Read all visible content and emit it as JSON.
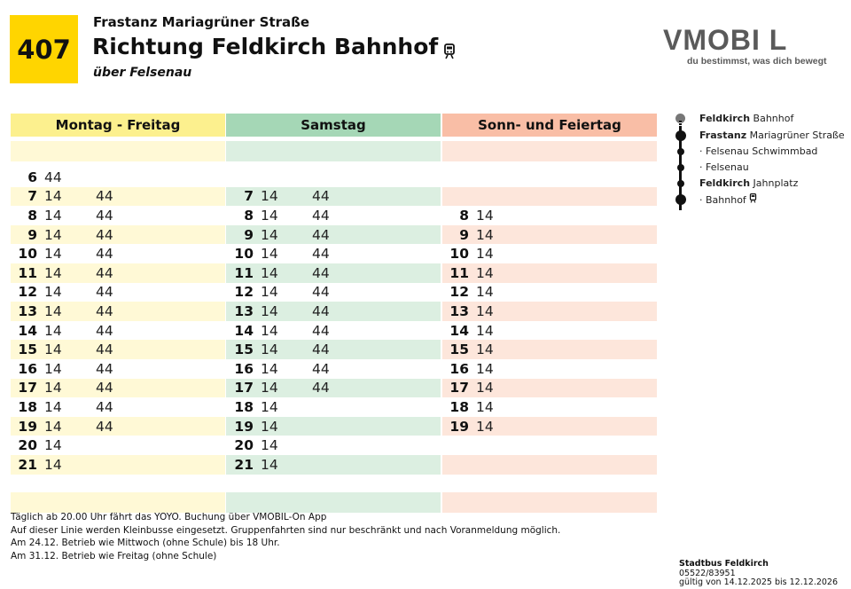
{
  "header": {
    "line_number": "407",
    "from_stop": "Frastanz Mariagrüner Straße",
    "direction": "Richtung Feldkirch Bahnhof",
    "direction_icon": "train-icon",
    "via": "über Felsenau"
  },
  "logo": {
    "wordmark": "VMOBI L",
    "tagline": "du bestimmst, was dich bewegt"
  },
  "columns": [
    {
      "label": "Montag - Freitag",
      "color": "#FCF08E",
      "rows": [
        {
          "hour": "6",
          "minutes": [
            "44",
            ""
          ]
        },
        {
          "hour": "7",
          "minutes": [
            "14",
            "44"
          ]
        },
        {
          "hour": "8",
          "minutes": [
            "14",
            "44"
          ]
        },
        {
          "hour": "9",
          "minutes": [
            "14",
            "44"
          ]
        },
        {
          "hour": "10",
          "minutes": [
            "14",
            "44"
          ]
        },
        {
          "hour": "11",
          "minutes": [
            "14",
            "44"
          ]
        },
        {
          "hour": "12",
          "minutes": [
            "14",
            "44"
          ]
        },
        {
          "hour": "13",
          "minutes": [
            "14",
            "44"
          ]
        },
        {
          "hour": "14",
          "minutes": [
            "14",
            "44"
          ]
        },
        {
          "hour": "15",
          "minutes": [
            "14",
            "44"
          ]
        },
        {
          "hour": "16",
          "minutes": [
            "14",
            "44"
          ]
        },
        {
          "hour": "17",
          "minutes": [
            "14",
            "44"
          ]
        },
        {
          "hour": "18",
          "minutes": [
            "14",
            "44"
          ]
        },
        {
          "hour": "19",
          "minutes": [
            "14",
            "44"
          ]
        },
        {
          "hour": "20",
          "minutes": [
            "14",
            ""
          ]
        },
        {
          "hour": "21",
          "minutes": [
            "14",
            ""
          ]
        }
      ]
    },
    {
      "label": "Samstag",
      "color": "#A5D7B6",
      "rows": [
        {
          "hour": "",
          "minutes": [
            "",
            ""
          ]
        },
        {
          "hour": "7",
          "minutes": [
            "14",
            "44"
          ]
        },
        {
          "hour": "8",
          "minutes": [
            "14",
            "44"
          ]
        },
        {
          "hour": "9",
          "minutes": [
            "14",
            "44"
          ]
        },
        {
          "hour": "10",
          "minutes": [
            "14",
            "44"
          ]
        },
        {
          "hour": "11",
          "minutes": [
            "14",
            "44"
          ]
        },
        {
          "hour": "12",
          "minutes": [
            "14",
            "44"
          ]
        },
        {
          "hour": "13",
          "minutes": [
            "14",
            "44"
          ]
        },
        {
          "hour": "14",
          "minutes": [
            "14",
            "44"
          ]
        },
        {
          "hour": "15",
          "minutes": [
            "14",
            "44"
          ]
        },
        {
          "hour": "16",
          "minutes": [
            "14",
            "44"
          ]
        },
        {
          "hour": "17",
          "minutes": [
            "14",
            "44"
          ]
        },
        {
          "hour": "18",
          "minutes": [
            "14",
            ""
          ]
        },
        {
          "hour": "19",
          "minutes": [
            "14",
            ""
          ]
        },
        {
          "hour": "20",
          "minutes": [
            "14",
            ""
          ]
        },
        {
          "hour": "21",
          "minutes": [
            "14",
            ""
          ]
        }
      ]
    },
    {
      "label": "Sonn- und Feiertag",
      "color": "#F9BEA6",
      "rows": [
        {
          "hour": "",
          "minutes": [
            "",
            ""
          ]
        },
        {
          "hour": "",
          "minutes": [
            "",
            ""
          ]
        },
        {
          "hour": "8",
          "minutes": [
            "14",
            ""
          ]
        },
        {
          "hour": "9",
          "minutes": [
            "14",
            ""
          ]
        },
        {
          "hour": "10",
          "minutes": [
            "14",
            ""
          ]
        },
        {
          "hour": "11",
          "minutes": [
            "14",
            ""
          ]
        },
        {
          "hour": "12",
          "minutes": [
            "14",
            ""
          ]
        },
        {
          "hour": "13",
          "minutes": [
            "14",
            ""
          ]
        },
        {
          "hour": "14",
          "minutes": [
            "14",
            ""
          ]
        },
        {
          "hour": "15",
          "minutes": [
            "14",
            ""
          ]
        },
        {
          "hour": "16",
          "minutes": [
            "14",
            ""
          ]
        },
        {
          "hour": "17",
          "minutes": [
            "14",
            ""
          ]
        },
        {
          "hour": "18",
          "minutes": [
            "14",
            ""
          ]
        },
        {
          "hour": "19",
          "minutes": [
            "14",
            ""
          ]
        },
        {
          "hour": "",
          "minutes": [
            "",
            ""
          ]
        },
        {
          "hour": "",
          "minutes": [
            "",
            ""
          ]
        }
      ]
    }
  ],
  "route": [
    {
      "bold": "Feldkirch",
      "rest": " Bahnhof",
      "marker": "grey-dot"
    },
    {
      "bold": "Frastanz",
      "rest": " Mariagrüner Straße",
      "marker": "large-dot"
    },
    {
      "bold": "",
      "rest": "· Felsenau Schwimmbad",
      "marker": "small-dot"
    },
    {
      "bold": "",
      "rest": "· Felsenau",
      "marker": "small-dot"
    },
    {
      "bold": "Feldkirch",
      "rest": " Jahnplatz",
      "marker": "small-dot"
    },
    {
      "bold": "",
      "rest": "· Bahnhof",
      "marker": "large-dot",
      "icon": "train-icon"
    }
  ],
  "notes": [
    "Täglich ab 20.00 Uhr fährt das YOYO. Buchung über VMOBIL-On App",
    "Auf dieser Linie werden Kleinbusse eingesetzt. Gruppenfahrten sind nur beschränkt und nach Voranmeldung möglich.",
    "Am 24.12. Betrieb wie Mittwoch (ohne Schule) bis 18 Uhr.",
    "Am 31.12. Betrieb wie Freitag (ohne Schule)"
  ],
  "footer": {
    "operator": "Stadtbus Feldkirch",
    "phone": "05522/83951",
    "validity": "gültig von 14.12.2025 bis 12.12.2026"
  }
}
